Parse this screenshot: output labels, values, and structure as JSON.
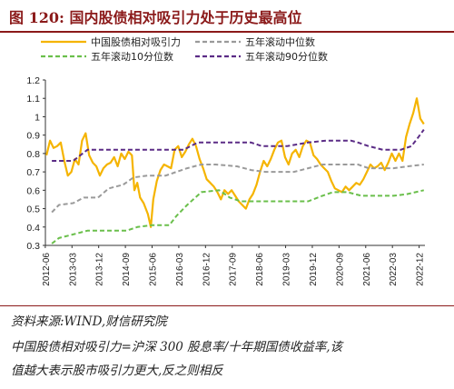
{
  "header": {
    "title": "图 120:  国内股债相对吸引力处于历史最高位"
  },
  "footer": {
    "source": "资料来源:WIND,财信研究院",
    "note_line1": "中国股债相对吸引力=沪深 300 股息率/十年期国债收益率,该",
    "note_line2": "值越大表示股市吸引力更大,反之则相反"
  },
  "chart_data": {
    "type": "line",
    "title": "",
    "xlabel": "",
    "ylabel": "",
    "ylim": [
      0.3,
      1.2
    ],
    "yticks": [
      "0.3",
      "0.4",
      "0.5",
      "0.6",
      "0.7",
      "0.8",
      "0.9",
      "1",
      "1.1",
      "1.2"
    ],
    "xlim": [
      2012.42,
      2023.08
    ],
    "xticks": [
      "2012-06",
      "2013-03",
      "2013-12",
      "2014-09",
      "2015-06",
      "2016-03",
      "2016-12",
      "2017-09",
      "2018-06",
      "2019-03",
      "2019-12",
      "2020-09",
      "2021-06",
      "2022-03",
      "2022-12"
    ],
    "legend_position": "top",
    "grid": false,
    "series": [
      {
        "name": "中国股债相对吸引力",
        "color": "#f5b400",
        "style": "solid",
        "points": [
          [
            2012.45,
            0.79
          ],
          [
            2012.55,
            0.87
          ],
          [
            2012.65,
            0.83
          ],
          [
            2012.75,
            0.84
          ],
          [
            2012.85,
            0.86
          ],
          [
            2012.95,
            0.76
          ],
          [
            2013.05,
            0.68
          ],
          [
            2013.15,
            0.7
          ],
          [
            2013.25,
            0.77
          ],
          [
            2013.35,
            0.74
          ],
          [
            2013.45,
            0.87
          ],
          [
            2013.55,
            0.91
          ],
          [
            2013.65,
            0.79
          ],
          [
            2013.75,
            0.75
          ],
          [
            2013.85,
            0.73
          ],
          [
            2013.95,
            0.68
          ],
          [
            2014.05,
            0.72
          ],
          [
            2014.15,
            0.74
          ],
          [
            2014.25,
            0.75
          ],
          [
            2014.35,
            0.78
          ],
          [
            2014.45,
            0.73
          ],
          [
            2014.55,
            0.8
          ],
          [
            2014.65,
            0.77
          ],
          [
            2014.75,
            0.81
          ],
          [
            2014.85,
            0.79
          ],
          [
            2014.92,
            0.6
          ],
          [
            2015.0,
            0.64
          ],
          [
            2015.08,
            0.56
          ],
          [
            2015.18,
            0.53
          ],
          [
            2015.3,
            0.47
          ],
          [
            2015.38,
            0.4
          ],
          [
            2015.45,
            0.55
          ],
          [
            2015.55,
            0.65
          ],
          [
            2015.65,
            0.71
          ],
          [
            2015.75,
            0.74
          ],
          [
            2015.85,
            0.73
          ],
          [
            2015.95,
            0.72
          ],
          [
            2016.05,
            0.82
          ],
          [
            2016.15,
            0.84
          ],
          [
            2016.25,
            0.78
          ],
          [
            2016.35,
            0.81
          ],
          [
            2016.45,
            0.85
          ],
          [
            2016.55,
            0.88
          ],
          [
            2016.65,
            0.84
          ],
          [
            2016.75,
            0.77
          ],
          [
            2016.85,
            0.72
          ],
          [
            2016.95,
            0.66
          ],
          [
            2017.05,
            0.64
          ],
          [
            2017.15,
            0.62
          ],
          [
            2017.25,
            0.59
          ],
          [
            2017.35,
            0.55
          ],
          [
            2017.45,
            0.6
          ],
          [
            2017.55,
            0.58
          ],
          [
            2017.65,
            0.6
          ],
          [
            2017.75,
            0.57
          ],
          [
            2017.85,
            0.54
          ],
          [
            2017.95,
            0.52
          ],
          [
            2018.05,
            0.5
          ],
          [
            2018.15,
            0.55
          ],
          [
            2018.25,
            0.58
          ],
          [
            2018.35,
            0.63
          ],
          [
            2018.45,
            0.7
          ],
          [
            2018.55,
            0.76
          ],
          [
            2018.65,
            0.73
          ],
          [
            2018.75,
            0.77
          ],
          [
            2018.85,
            0.82
          ],
          [
            2018.95,
            0.86
          ],
          [
            2019.05,
            0.87
          ],
          [
            2019.15,
            0.78
          ],
          [
            2019.25,
            0.74
          ],
          [
            2019.35,
            0.8
          ],
          [
            2019.45,
            0.82
          ],
          [
            2019.55,
            0.78
          ],
          [
            2019.65,
            0.84
          ],
          [
            2019.75,
            0.87
          ],
          [
            2019.85,
            0.86
          ],
          [
            2019.95,
            0.79
          ],
          [
            2020.05,
            0.77
          ],
          [
            2020.15,
            0.74
          ],
          [
            2020.25,
            0.72
          ],
          [
            2020.35,
            0.7
          ],
          [
            2020.45,
            0.65
          ],
          [
            2020.55,
            0.61
          ],
          [
            2020.65,
            0.6
          ],
          [
            2020.75,
            0.59
          ],
          [
            2020.85,
            0.62
          ],
          [
            2020.95,
            0.6
          ],
          [
            2021.05,
            0.62
          ],
          [
            2021.15,
            0.64
          ],
          [
            2021.25,
            0.63
          ],
          [
            2021.35,
            0.66
          ],
          [
            2021.45,
            0.7
          ],
          [
            2021.55,
            0.74
          ],
          [
            2021.65,
            0.72
          ],
          [
            2021.75,
            0.73
          ],
          [
            2021.85,
            0.75
          ],
          [
            2021.95,
            0.71
          ],
          [
            2022.05,
            0.75
          ],
          [
            2022.15,
            0.8
          ],
          [
            2022.25,
            0.76
          ],
          [
            2022.35,
            0.8
          ],
          [
            2022.45,
            0.76
          ],
          [
            2022.55,
            0.89
          ],
          [
            2022.65,
            0.96
          ],
          [
            2022.75,
            1.02
          ],
          [
            2022.85,
            1.1
          ],
          [
            2022.95,
            0.99
          ],
          [
            2023.05,
            0.96
          ]
        ]
      },
      {
        "name": "五年滚动中位数",
        "color": "#9a9a9a",
        "style": "dashed",
        "points": [
          [
            2012.6,
            0.48
          ],
          [
            2012.8,
            0.52
          ],
          [
            2013.2,
            0.53
          ],
          [
            2013.5,
            0.56
          ],
          [
            2013.9,
            0.56
          ],
          [
            2014.2,
            0.61
          ],
          [
            2014.6,
            0.63
          ],
          [
            2014.9,
            0.67
          ],
          [
            2015.3,
            0.68
          ],
          [
            2015.8,
            0.68
          ],
          [
            2016.1,
            0.7
          ],
          [
            2016.4,
            0.72
          ],
          [
            2016.8,
            0.74
          ],
          [
            2017.2,
            0.74
          ],
          [
            2017.8,
            0.73
          ],
          [
            2018.2,
            0.71
          ],
          [
            2018.6,
            0.7
          ],
          [
            2019.0,
            0.7
          ],
          [
            2019.4,
            0.7
          ],
          [
            2019.8,
            0.72
          ],
          [
            2020.2,
            0.74
          ],
          [
            2020.7,
            0.74
          ],
          [
            2021.2,
            0.74
          ],
          [
            2021.5,
            0.72
          ],
          [
            2021.8,
            0.72
          ],
          [
            2022.2,
            0.72
          ],
          [
            2022.6,
            0.73
          ],
          [
            2023.05,
            0.74
          ]
        ]
      },
      {
        "name": "五年滚动10分位数",
        "color": "#6abf4b",
        "style": "dashed",
        "points": [
          [
            2012.6,
            0.31
          ],
          [
            2012.8,
            0.34
          ],
          [
            2013.2,
            0.36
          ],
          [
            2013.6,
            0.38
          ],
          [
            2014.2,
            0.38
          ],
          [
            2014.7,
            0.38
          ],
          [
            2015.0,
            0.4
          ],
          [
            2015.4,
            0.41
          ],
          [
            2015.9,
            0.41
          ],
          [
            2016.1,
            0.46
          ],
          [
            2016.4,
            0.52
          ],
          [
            2016.8,
            0.59
          ],
          [
            2017.3,
            0.6
          ],
          [
            2017.6,
            0.56
          ],
          [
            2017.9,
            0.54
          ],
          [
            2018.5,
            0.54
          ],
          [
            2019.2,
            0.54
          ],
          [
            2019.8,
            0.54
          ],
          [
            2020.2,
            0.57
          ],
          [
            2020.5,
            0.59
          ],
          [
            2020.9,
            0.59
          ],
          [
            2021.3,
            0.57
          ],
          [
            2021.6,
            0.57
          ],
          [
            2022.2,
            0.57
          ],
          [
            2022.6,
            0.58
          ],
          [
            2023.05,
            0.6
          ]
        ]
      },
      {
        "name": "五年滚动90分位数",
        "color": "#5b2c86",
        "style": "dashed",
        "points": [
          [
            2012.6,
            0.76
          ],
          [
            2013.2,
            0.76
          ],
          [
            2013.6,
            0.82
          ],
          [
            2014.5,
            0.82
          ],
          [
            2015.6,
            0.82
          ],
          [
            2016.3,
            0.82
          ],
          [
            2016.7,
            0.86
          ],
          [
            2017.5,
            0.86
          ],
          [
            2018.2,
            0.86
          ],
          [
            2018.5,
            0.84
          ],
          [
            2019.2,
            0.84
          ],
          [
            2019.8,
            0.86
          ],
          [
            2020.3,
            0.87
          ],
          [
            2021.0,
            0.87
          ],
          [
            2021.2,
            0.86
          ],
          [
            2021.5,
            0.84
          ],
          [
            2021.9,
            0.82
          ],
          [
            2022.4,
            0.82
          ],
          [
            2022.7,
            0.84
          ],
          [
            2022.9,
            0.89
          ],
          [
            2023.05,
            0.93
          ]
        ]
      }
    ]
  }
}
